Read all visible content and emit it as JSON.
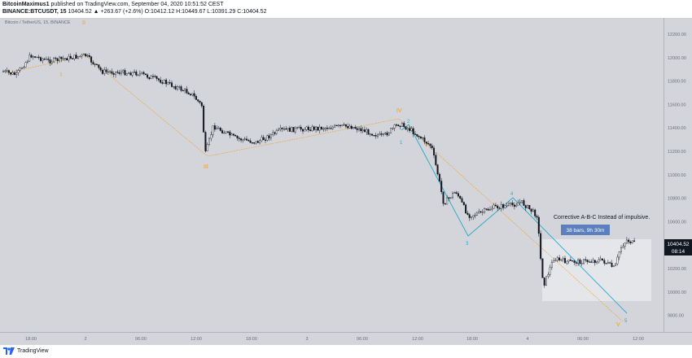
{
  "header": {
    "author": "BitcoinMaximus1",
    "published_text": "published on TradingView.com, September 04, 2020 10:51:52 CEST",
    "symbol": "BINANCE:BTCUSDT, 15",
    "quote": "10404.52 ▲ +263.67 (+2.6%) O:10412.12 H:10449.67 L:10391.29 C:10404.52"
  },
  "chart_label": "Bitcoin / TetherUS, 15, BINANCE",
  "price_axis": {
    "ticks": [
      "12200.00",
      "12000.00",
      "11800.00",
      "11600.00",
      "11400.00",
      "11200.00",
      "11000.00",
      "10800.00",
      "10600.00",
      "10400.00",
      "10200.00",
      "10000.00",
      "9800.00"
    ],
    "current_price": "10404.52",
    "countdown": "08:14"
  },
  "time_axis": {
    "ticks": [
      "18:00",
      "2",
      "06:00",
      "12:00",
      "18:00",
      "3",
      "06:00",
      "12:00",
      "18:00",
      "4",
      "06:00",
      "12:00"
    ]
  },
  "elliott_labels": {
    "orange": [
      "I",
      "II",
      "III",
      "IV",
      "V"
    ],
    "cyan": [
      "1",
      "2",
      "3",
      "4",
      "5"
    ]
  },
  "annotation": {
    "text": "Corrective A-B-C Instead of impulsive.",
    "badge": "38 bars, 9h 30m"
  },
  "colors": {
    "background": "#d3d5db",
    "candle": "#131722",
    "orange_wave": "#f39c12",
    "cyan_wave": "#26a9c9",
    "badge": "#5b7fbf",
    "price_marker": "#131722"
  },
  "footer": {
    "brand": "TradingView"
  }
}
